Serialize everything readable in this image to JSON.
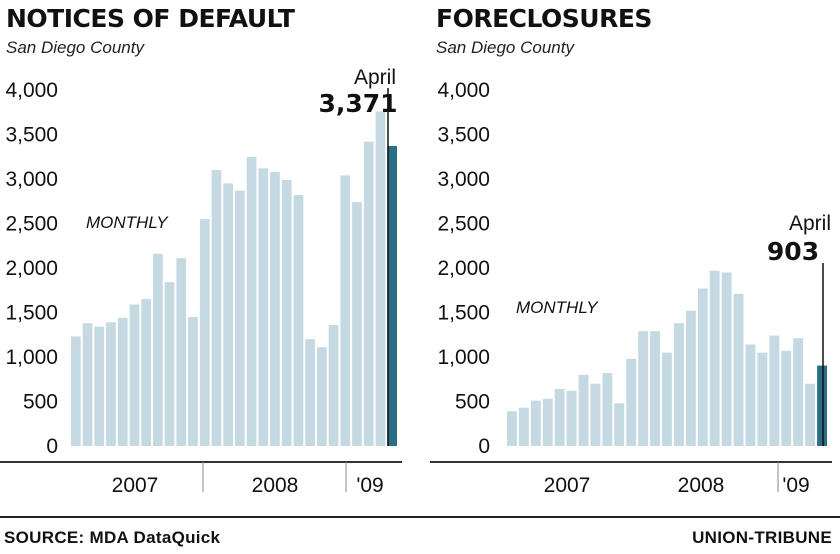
{
  "chart_data": [
    {
      "type": "bar",
      "title": "NOTICES OF DEFAULT",
      "subtitle": "San Diego County",
      "series_label": "MONTHLY",
      "ylim": [
        0,
        4000
      ],
      "yticks": [
        0,
        500,
        1000,
        1500,
        2000,
        2500,
        3000,
        3500,
        4000
      ],
      "ytick_labels": [
        "0",
        "500",
        "1,000",
        "1,500",
        "2,000",
        "2,500",
        "3,000",
        "3,500",
        "4,000"
      ],
      "xgroup_labels": [
        "2007",
        "2008",
        "'09"
      ],
      "values": [
        1230,
        1380,
        1340,
        1390,
        1440,
        1590,
        1650,
        2160,
        1840,
        2110,
        1450,
        2550,
        3100,
        2950,
        2870,
        3250,
        3120,
        3080,
        2990,
        2820,
        1200,
        1110,
        1360,
        3040,
        2740,
        3420,
        3760,
        3371
      ],
      "annotation": {
        "label": "April",
        "value_text": "3,371"
      },
      "highlight_color": "#2a6d85",
      "bar_color": "#c4d9e1"
    },
    {
      "type": "bar",
      "title": "FORECLOSURES",
      "subtitle": "San Diego County",
      "series_label": "MONTHLY",
      "ylim": [
        0,
        4000
      ],
      "yticks": [
        0,
        500,
        1000,
        1500,
        2000,
        2500,
        3000,
        3500,
        4000
      ],
      "ytick_labels": [
        "0",
        "500",
        "1,000",
        "1,500",
        "2,000",
        "2,500",
        "3,000",
        "3,500",
        "4,000"
      ],
      "xgroup_labels": [
        "2007",
        "2008",
        "'09"
      ],
      "values": [
        390,
        430,
        510,
        530,
        640,
        620,
        800,
        700,
        820,
        480,
        980,
        1290,
        1290,
        1050,
        1380,
        1520,
        1770,
        1970,
        1950,
        1710,
        1140,
        1050,
        1240,
        1070,
        1210,
        700,
        903
      ],
      "annotation": {
        "label": "April",
        "value_text": "903"
      },
      "highlight_color": "#2a6d85",
      "bar_color": "#c4d9e1"
    }
  ],
  "footer": {
    "source": "SOURCE: MDA DataQuick",
    "credit": "UNION-TRIBUNE"
  }
}
